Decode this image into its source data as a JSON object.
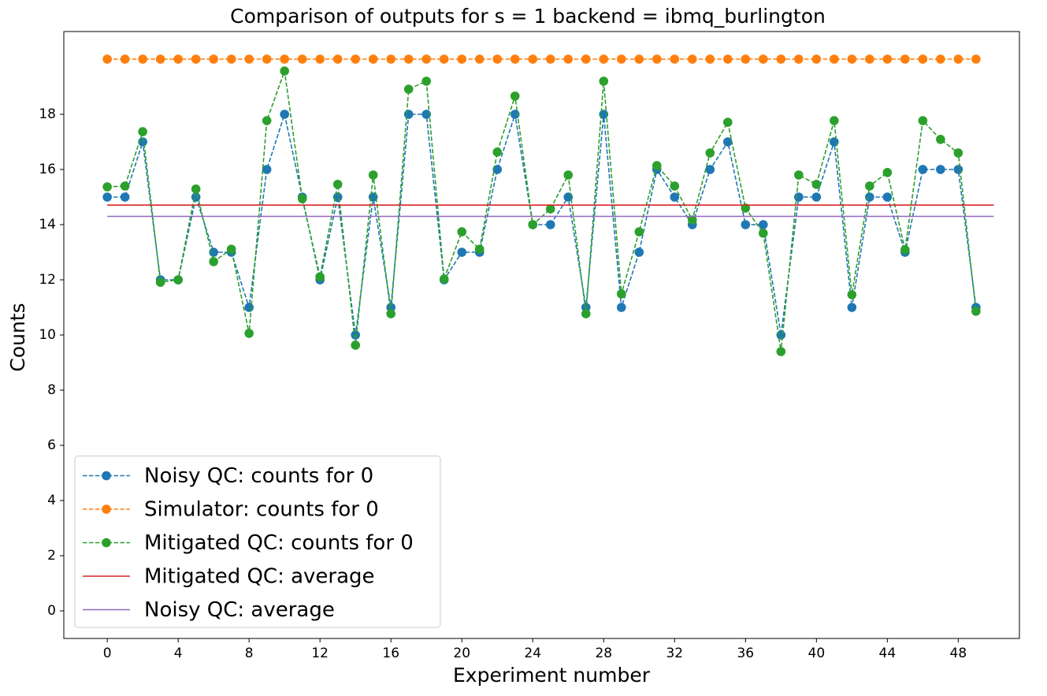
{
  "chart_data": {
    "type": "line",
    "title": "Comparison of outputs for s = 1 backend = ibmq_burlington",
    "xlabel": "Experiment number",
    "ylabel": "Counts",
    "xlim": [
      -2.45,
      51.45
    ],
    "ylim": [
      -1,
      21
    ],
    "xticks": [
      0,
      4,
      8,
      12,
      16,
      20,
      24,
      28,
      32,
      36,
      40,
      44,
      48
    ],
    "yticks": [
      0,
      2,
      4,
      6,
      8,
      10,
      12,
      14,
      16,
      18
    ],
    "legend": "lower left",
    "series": [
      {
        "name": "Noisy QC: counts for 0",
        "color": "#1f77b4",
        "linestyle": "dashed",
        "marker": "circle",
        "values": [
          15,
          15,
          17,
          12,
          12,
          15,
          13,
          13,
          11,
          16,
          18,
          15,
          12,
          15,
          10,
          15,
          11,
          18,
          18,
          12,
          13,
          13,
          16,
          18,
          14,
          14,
          15,
          11,
          18,
          11,
          13,
          16,
          15,
          14,
          16,
          17,
          14,
          14,
          10,
          15,
          15,
          17,
          11,
          15,
          15,
          13,
          16,
          16,
          16,
          11
        ]
      },
      {
        "name": "Simulator: counts for 0",
        "color": "#ff7f0e",
        "linestyle": "dashed",
        "marker": "circle",
        "values": [
          20,
          20,
          20,
          20,
          20,
          20,
          20,
          20,
          20,
          20,
          20,
          20,
          20,
          20,
          20,
          20,
          20,
          20,
          20,
          20,
          20,
          20,
          20,
          20,
          20,
          20,
          20,
          20,
          20,
          20,
          20,
          20,
          20,
          20,
          20,
          20,
          20,
          20,
          20,
          20,
          20,
          20,
          20,
          20,
          20,
          20,
          20,
          20,
          20,
          20
        ]
      },
      {
        "name": "Mitigated QC: counts for 0",
        "color": "#2ca02c",
        "linestyle": "dashed",
        "marker": "circle",
        "values": [
          15.37,
          15.4,
          17.37,
          11.91,
          12.0,
          15.29,
          12.66,
          13.11,
          10.06,
          17.77,
          19.57,
          14.94,
          12.11,
          15.46,
          9.63,
          15.8,
          10.77,
          18.91,
          19.2,
          12.03,
          13.74,
          13.11,
          16.63,
          18.66,
          14.0,
          14.57,
          15.8,
          10.77,
          19.2,
          11.49,
          13.74,
          16.14,
          15.4,
          14.17,
          16.6,
          17.71,
          14.6,
          13.69,
          9.4,
          15.8,
          15.46,
          17.77,
          11.46,
          15.4,
          15.89,
          13.09,
          17.77,
          17.09,
          16.6,
          10.86
        ]
      },
      {
        "name": "Mitigated QC: average",
        "color": "#d62728",
        "linestyle": "solid",
        "x": [
          0,
          50
        ],
        "values": [
          14.71,
          14.71
        ]
      },
      {
        "name": "Noisy QC: average",
        "color": "#9467bd",
        "linestyle": "solid",
        "x": [
          0,
          50
        ],
        "values": [
          14.3,
          14.3
        ]
      }
    ]
  }
}
